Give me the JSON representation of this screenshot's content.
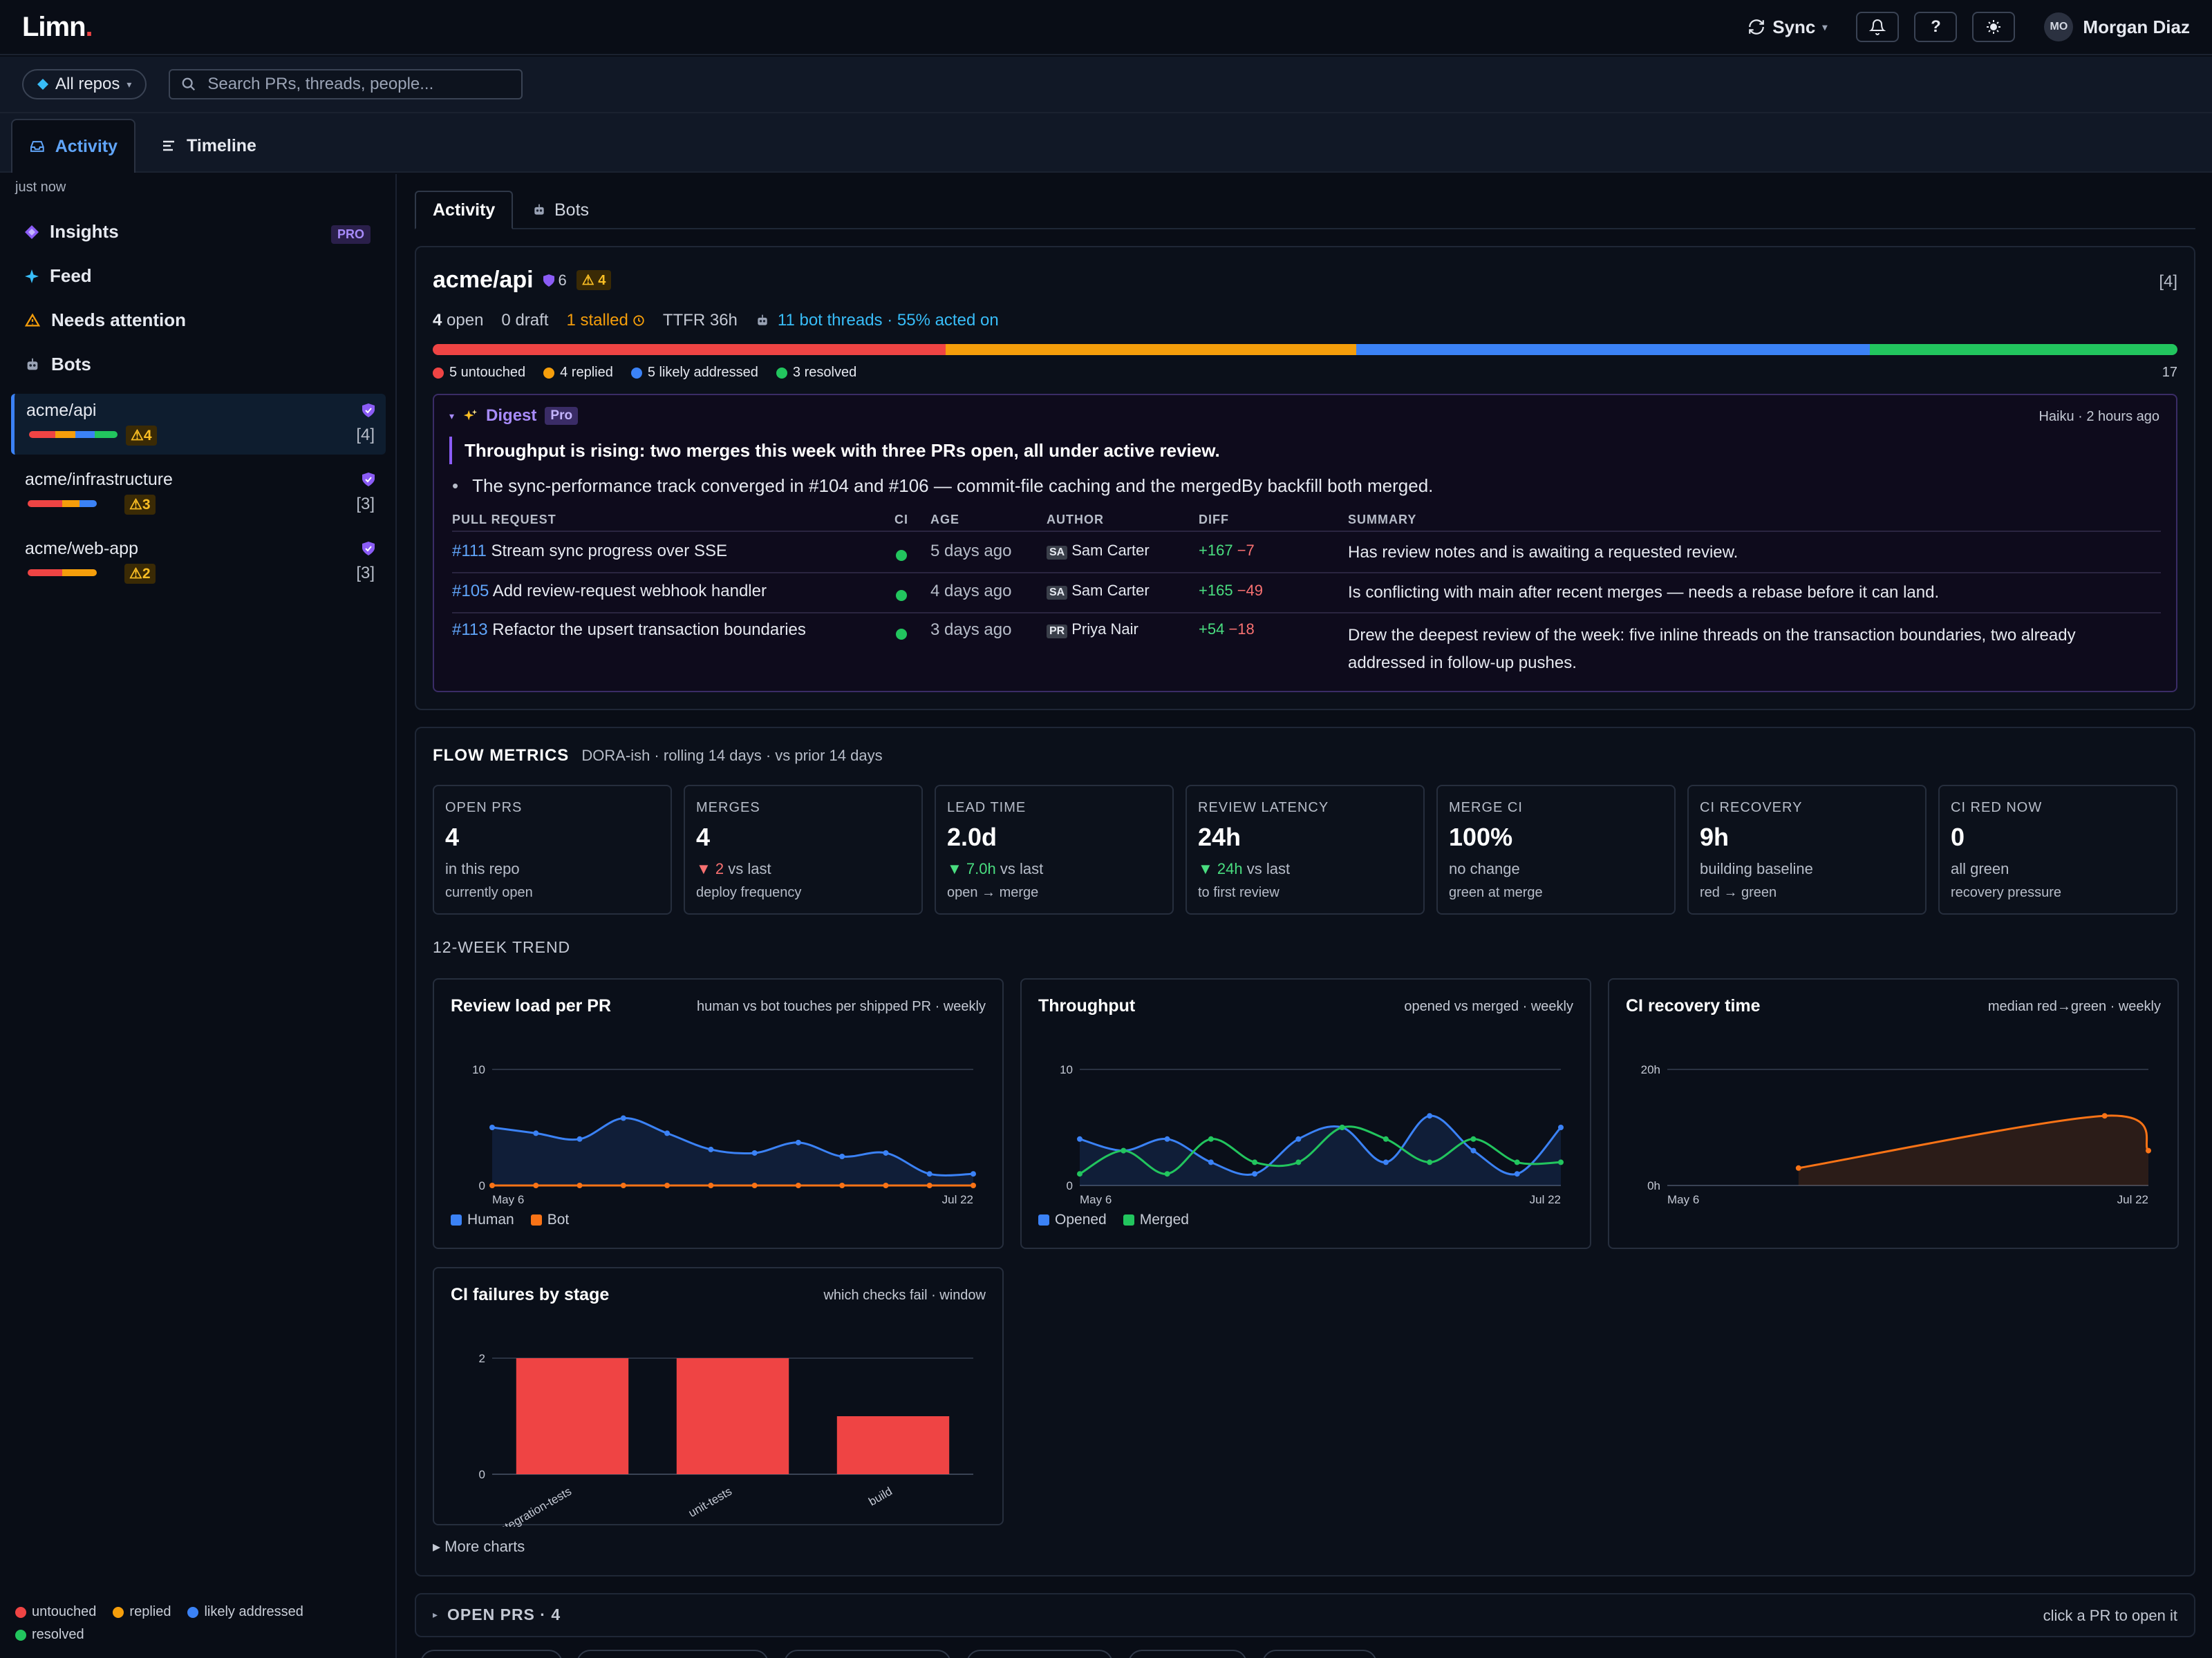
{
  "app": {
    "logo": "Limn",
    "logo_dot": ".",
    "sync_label": "Sync",
    "sync_caret": "▾",
    "help_label": "?",
    "user_initials": "MO",
    "user_name": "Morgan Diaz"
  },
  "filters": {
    "repo_scope": "All repos",
    "search_placeholder": "Search PRs, threads, people..."
  },
  "tabs": [
    {
      "label": "Activity"
    },
    {
      "label": "Timeline"
    }
  ],
  "sidebar": {
    "updated": "just now",
    "nav": [
      {
        "label": "Insights",
        "badge": "PRO"
      },
      {
        "label": "Feed"
      },
      {
        "label": "Needs attention"
      },
      {
        "label": "Bots"
      }
    ],
    "repos": [
      {
        "name": "acme/api",
        "warn": "⚠4",
        "count": "[4]",
        "bar": [
          {
            "color": "#ef4444",
            "frac": 0.3
          },
          {
            "color": "#f59e0b",
            "frac": 0.22
          },
          {
            "color": "#3b82f6",
            "frac": 0.22
          },
          {
            "color": "#22c55e",
            "frac": 0.26
          }
        ]
      },
      {
        "name": "acme/infrastructure",
        "warn": "⚠3",
        "count": "[3]",
        "bar": [
          {
            "color": "#ef4444",
            "frac": 0.5
          },
          {
            "color": "#f59e0b",
            "frac": 0.25
          },
          {
            "color": "#3b82f6",
            "frac": 0.25
          }
        ]
      },
      {
        "name": "acme/web-app",
        "warn": "⚠2",
        "count": "[3]",
        "bar": [
          {
            "color": "#ef4444",
            "frac": 0.5
          },
          {
            "color": "#f59e0b",
            "frac": 0.5
          }
        ]
      }
    ],
    "legend": [
      "untouched",
      "replied",
      "likely addressed",
      "resolved"
    ]
  },
  "colors": {
    "untouched": "#ef4444",
    "replied": "#f59e0b",
    "likely_addressed": "#3b82f6",
    "resolved": "#22c55e",
    "accent": "#60a5fa",
    "pro": "#a78bfa"
  },
  "subtabs": [
    {
      "label": "Activity"
    },
    {
      "label": "Bots"
    }
  ],
  "repo_card": {
    "name": "acme/api",
    "shield_count": "6",
    "warn_count": "⚠ 4",
    "count": "[4]",
    "open_count": "4",
    "open_label": "open",
    "draft": "0 draft",
    "stalled": "1 stalled",
    "ttfr": "TTFR 36h",
    "bot_threads": "11 bot threads · 55% acted on",
    "status_bar": [
      {
        "key": "untouched",
        "value": 5
      },
      {
        "key": "replied",
        "value": 4
      },
      {
        "key": "likely_addressed",
        "value": 5
      },
      {
        "key": "resolved",
        "value": 3
      }
    ],
    "status_legend": [
      "5 untouched",
      "4 replied",
      "5 likely addressed",
      "3 resolved"
    ],
    "total": "17"
  },
  "digest": {
    "caret": "▾",
    "title": "Digest",
    "badge": "Pro",
    "meta": "Haiku · 2 hours ago",
    "headline": "Throughput is rising: two merges this week with three PRs open, all under active review.",
    "bullet": "The sync-performance track converged in #104 and #106 — commit-file caching and the mergedBy backfill both merged.",
    "columns": [
      "PULL REQUEST",
      "CI",
      "AGE",
      "AUTHOR",
      "DIFF",
      "SUMMARY"
    ],
    "rows": [
      {
        "num": "#111",
        "title": "Stream sync progress over SSE",
        "age": "5 days ago",
        "initials": "SA",
        "author": "Sam Carter",
        "add": "+167",
        "del": "−7",
        "summary": "Has review notes and is awaiting a requested review.",
        "summary2": ""
      },
      {
        "num": "#105",
        "title": "Add review-request webhook handler",
        "age": "4 days ago",
        "initials": "SA",
        "author": "Sam Carter",
        "add": "+165",
        "del": "−49",
        "summary": "Is conflicting with main after recent merges — needs a rebase before it can land.",
        "summary2": ""
      },
      {
        "num": "#113",
        "title": "Refactor the upsert transaction boundaries",
        "age": "3 days ago",
        "initials": "PR",
        "author": "Priya Nair",
        "add": "+54",
        "del": "−18",
        "summary": "Drew the deepest review of the week: five inline threads on the transaction boundaries, two already",
        "summary2": "addressed in follow-up pushes."
      }
    ]
  },
  "flow": {
    "title": "FLOW METRICS",
    "subtitle": "DORA-ish · rolling 14 days · vs prior 14 days",
    "metrics": [
      {
        "label": "OPEN PRS",
        "value": "4",
        "sub": "in this repo",
        "sub2": "currently open",
        "delta": "",
        "delta_dir": ""
      },
      {
        "label": "MERGES",
        "value": "4",
        "delta": "▼ 2",
        "delta_dir": "down",
        "sub": " vs last",
        "sub2": "deploy frequency"
      },
      {
        "label": "LEAD TIME",
        "value": "2.0d",
        "delta": "▼ 7.0h",
        "delta_dir": "good",
        "sub": " vs last",
        "sub2": "open → merge"
      },
      {
        "label": "REVIEW LATENCY",
        "value": "24h",
        "delta": "▼ 24h",
        "delta_dir": "good",
        "sub": " vs last",
        "sub2": "to first review"
      },
      {
        "label": "MERGE CI",
        "value": "100%",
        "delta": "",
        "delta_dir": "",
        "sub": "no change",
        "sub2": "green at merge"
      },
      {
        "label": "CI RECOVERY",
        "value": "9h",
        "delta": "",
        "delta_dir": "",
        "sub": "building baseline",
        "sub2": "red → green"
      },
      {
        "label": "CI RED NOW",
        "value": "0",
        "delta": "",
        "delta_dir": "",
        "sub": "all green",
        "sub2": "recovery pressure"
      }
    ],
    "trend_title": "12-WEEK TREND",
    "more_charts": "▸ More charts"
  },
  "chart_data": [
    {
      "type": "line",
      "title": "Review load per PR",
      "subtitle": "human vs bot touches per shipped PR · weekly",
      "ylim": [
        0,
        10
      ],
      "yticks": [
        "0",
        "10"
      ],
      "xlabels": [
        "May 6",
        "Jul 22"
      ],
      "series": [
        {
          "name": "Human",
          "color": "#3b82f6",
          "values": [
            5,
            4.5,
            4,
            5.8,
            4.5,
            3.1,
            2.8,
            3.7,
            2.5,
            2.8,
            1,
            1
          ]
        },
        {
          "name": "Bot",
          "color": "#f97316",
          "values": [
            0,
            0,
            0,
            0,
            0,
            0,
            0,
            0,
            0,
            0,
            0,
            0
          ]
        }
      ]
    },
    {
      "type": "line",
      "title": "Throughput",
      "subtitle": "opened vs merged · weekly",
      "ylim": [
        0,
        10
      ],
      "yticks": [
        "0",
        "10"
      ],
      "xlabels": [
        "May 6",
        "Jul 22"
      ],
      "series": [
        {
          "name": "Opened",
          "color": "#3b82f6",
          "values": [
            4,
            3,
            4,
            2,
            1,
            4,
            5,
            2,
            6,
            3,
            1,
            5
          ]
        },
        {
          "name": "Merged",
          "color": "#22c55e",
          "values": [
            1,
            3,
            1,
            4,
            2,
            2,
            5,
            4,
            2,
            4,
            2,
            2
          ]
        }
      ]
    },
    {
      "type": "line",
      "title": "CI recovery time",
      "subtitle": "median red→green · weekly",
      "ylim": [
        0,
        20
      ],
      "yticks": [
        "0h",
        "20h"
      ],
      "xlabels": [
        "May 6",
        "Jul 22"
      ],
      "series": [
        {
          "name": "",
          "color": "#f97316",
          "values": [
            null,
            null,
            null,
            3,
            null,
            null,
            null,
            null,
            null,
            null,
            12,
            6
          ]
        }
      ]
    },
    {
      "type": "bar",
      "title": "CI failures by stage",
      "subtitle": "which checks fail · window",
      "ylim": [
        0,
        2
      ],
      "yticks": [
        "0",
        "2"
      ],
      "categories": [
        "integration-tests",
        "unit-tests",
        "build"
      ],
      "values": [
        2,
        2,
        1
      ],
      "color": "#ef4444"
    }
  ],
  "open_prs": {
    "caret": "▸",
    "title": "OPEN PRS · 4",
    "hint": "click a PR to open it"
  }
}
